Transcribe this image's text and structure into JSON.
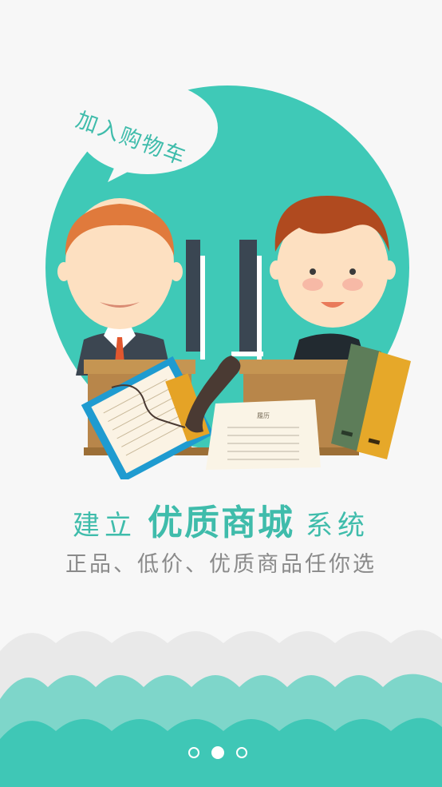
{
  "bubble": {
    "text": "加入购物车"
  },
  "headline": {
    "part1": "建立",
    "highlight": "优质商城",
    "part2": "系统"
  },
  "subline": {
    "text": "正品、低价、优质商品任你选"
  },
  "document": {
    "title": "履历"
  },
  "pagination": {
    "count": 3,
    "active_index": 1
  },
  "colors": {
    "accent": "#3fbcab",
    "wave_light": "#e9e9e9",
    "wave_mid": "#7ed6ca",
    "wave_dark": "#3fc7b6"
  }
}
